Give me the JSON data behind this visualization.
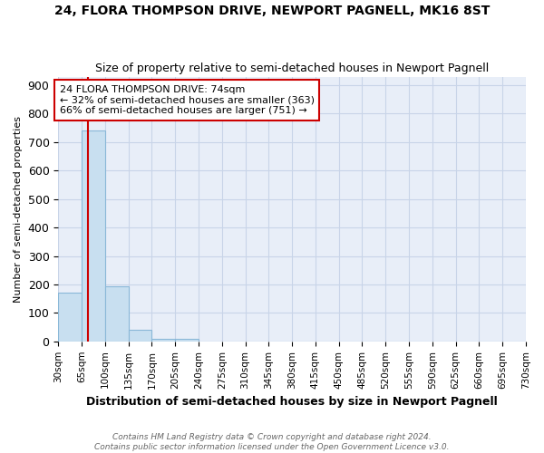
{
  "title": "24, FLORA THOMPSON DRIVE, NEWPORT PAGNELL, MK16 8ST",
  "subtitle": "Size of property relative to semi-detached houses in Newport Pagnell",
  "xlabel": "Distribution of semi-detached houses by size in Newport Pagnell",
  "ylabel": "Number of semi-detached properties",
  "footnote1": "Contains HM Land Registry data © Crown copyright and database right 2024.",
  "footnote2": "Contains public sector information licensed under the Open Government Licence v3.0.",
  "bin_edges": [
    30,
    65,
    100,
    135,
    170,
    205,
    240,
    275,
    310,
    345,
    380,
    415,
    450,
    485,
    520,
    555,
    590,
    625,
    660,
    695,
    730
  ],
  "bar_heights": [
    170,
    740,
    193,
    40,
    10,
    10,
    0,
    0,
    0,
    0,
    0,
    0,
    0,
    0,
    0,
    0,
    0,
    0,
    0,
    0
  ],
  "bar_color": "#c8dff0",
  "bar_edge_color": "#8ab8d8",
  "property_size": 74,
  "property_line_color": "#cc0000",
  "annotation_text_line1": "24 FLORA THOMPSON DRIVE: 74sqm",
  "annotation_text_line2": "← 32% of semi-detached houses are smaller (363)",
  "annotation_text_line3": "66% of semi-detached houses are larger (751) →",
  "annotation_box_color": "#ffffff",
  "annotation_box_edge_color": "#cc0000",
  "grid_color": "#c8d4e8",
  "bg_color": "#e8eef8",
  "ylim": [
    0,
    930
  ],
  "yticks": [
    0,
    100,
    200,
    300,
    400,
    500,
    600,
    700,
    800,
    900
  ],
  "tick_labels": [
    "30sqm",
    "65sqm",
    "100sqm",
    "135sqm",
    "170sqm",
    "205sqm",
    "240sqm",
    "275sqm",
    "310sqm",
    "345sqm",
    "380sqm",
    "415sqm",
    "450sqm",
    "485sqm",
    "520sqm",
    "555sqm",
    "590sqm",
    "625sqm",
    "660sqm",
    "695sqm",
    "730sqm"
  ]
}
